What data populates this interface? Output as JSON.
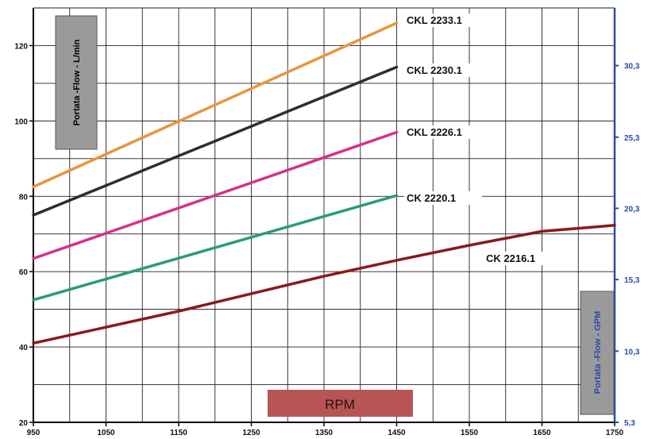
{
  "chart_data": {
    "type": "line",
    "xlabel": "RPM",
    "ylabel_left": "Portata -Flow -  L/min",
    "ylabel_right": "Portata -Flow -  GPM",
    "xlim": [
      950,
      1750
    ],
    "ylim": [
      20,
      130
    ],
    "x_ticks": [
      950,
      1050,
      1150,
      1250,
      1350,
      1450,
      1550,
      1650,
      1750
    ],
    "x_tick_labels": [
      "950",
      "1050",
      "1150",
      "1250",
      "1350",
      "1450",
      "1550",
      "1650",
      "1750"
    ],
    "y_ticks_left": [
      20,
      40,
      60,
      80,
      100,
      120
    ],
    "y_tick_labels_left": [
      "20",
      "40",
      "60",
      "80",
      "100",
      "120"
    ],
    "y_ticks_right": [
      {
        "label": "5,3",
        "at": 20
      },
      {
        "label": "10,3",
        "at": 38.9
      },
      {
        "label": "15,3",
        "at": 57.9
      },
      {
        "label": "20,3",
        "at": 76.8
      },
      {
        "label": "25,3",
        "at": 95.7
      },
      {
        "label": "30,3",
        "at": 114.7
      }
    ],
    "grid": true,
    "series": [
      {
        "name": "CKL 2233.1",
        "color": "#e8953a",
        "x": [
          950,
          1450
        ],
        "y": [
          82.5,
          126
        ]
      },
      {
        "name": "CKL 2230.1",
        "color": "#2b2e33",
        "x": [
          950,
          1450
        ],
        "y": [
          75,
          114.3
        ]
      },
      {
        "name": "CKL 2226.1",
        "color": "#d92e8c",
        "x": [
          950,
          1450
        ],
        "y": [
          63.5,
          97
        ]
      },
      {
        "name": "CK 2220.1",
        "color": "#2a9b78",
        "x": [
          950,
          1450
        ],
        "y": [
          52.5,
          80.2
        ]
      },
      {
        "name": "CK 2216.1",
        "color": "#8b1a1a",
        "x": [
          950,
          1150,
          1350,
          1450,
          1550,
          1650,
          1750
        ],
        "y": [
          41,
          49.5,
          58.8,
          63,
          67,
          70.7,
          72.3
        ]
      }
    ]
  }
}
